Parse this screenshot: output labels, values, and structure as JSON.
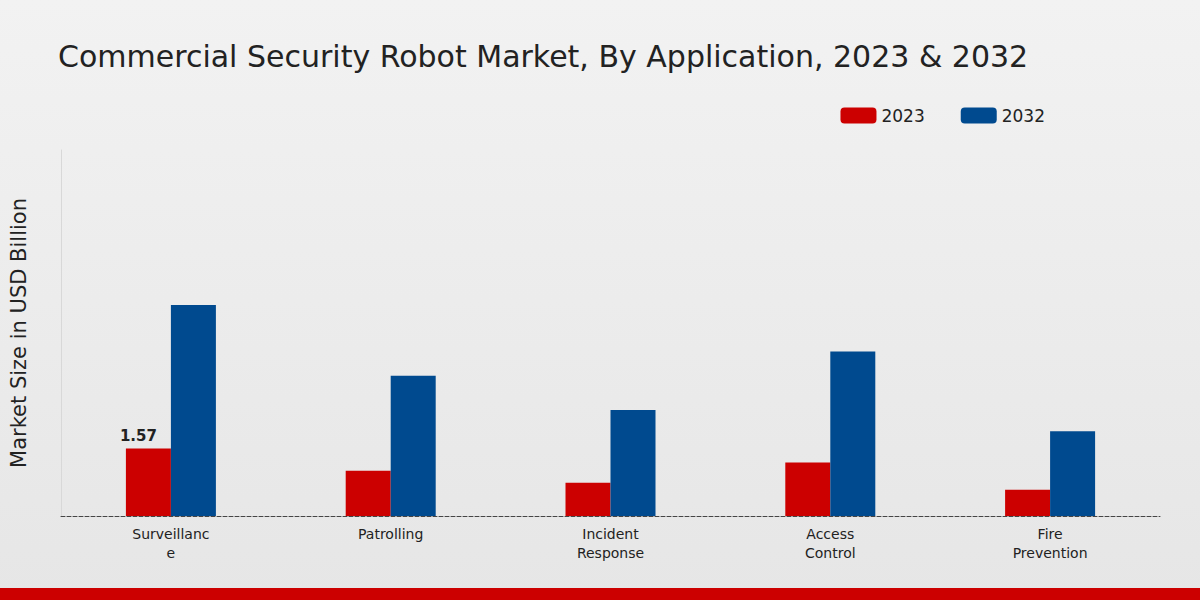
{
  "chart_data": {
    "type": "bar",
    "title": "Commercial Security Robot Market, By Application, 2023 & 2032",
    "y_label": "Market Size in USD Billion",
    "categories": [
      "Surveillanc\ne",
      "Patrolling",
      "Incident\nResponse",
      "Access\nControl",
      "Fire\nPrevention"
    ],
    "series": [
      {
        "name": "2023",
        "color": "#cc0000",
        "values": [
          1.57,
          1.05,
          0.77,
          1.24,
          0.61
        ],
        "value_labels": [
          "1.57",
          null,
          null,
          null,
          null
        ]
      },
      {
        "name": "2032",
        "color": "#004a8f",
        "values": [
          4.9,
          3.26,
          2.46,
          3.82,
          1.97
        ]
      }
    ],
    "ylim": [
      0,
      8.5
    ],
    "grid": false,
    "legend": "top-right",
    "tick_labels": "x",
    "data_labels": true
  }
}
